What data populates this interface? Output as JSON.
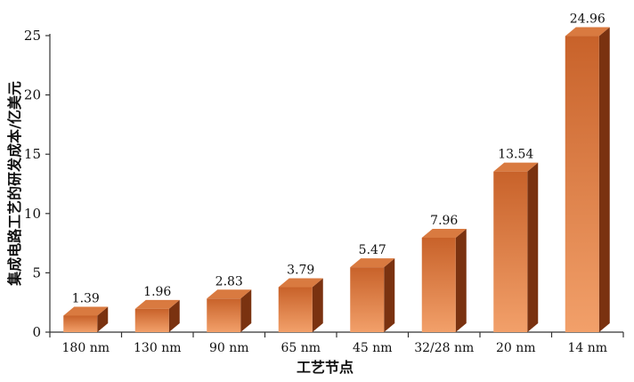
{
  "chart_data": {
    "type": "bar",
    "categories": [
      "180 nm",
      "130 nm",
      "90 nm",
      "65 nm",
      "45 nm",
      "32/28 nm",
      "20 nm",
      "14 nm"
    ],
    "values": [
      1.39,
      1.96,
      2.83,
      3.79,
      5.47,
      7.96,
      13.54,
      24.96
    ],
    "value_labels": [
      "1.39",
      "1.96",
      "2.83",
      "3.79",
      "5.47",
      "7.96",
      "13.54",
      "24.96"
    ],
    "xlabel": "工艺节点",
    "ylabel": "集成电路工艺的研发成本/亿美元",
    "ylim": [
      0,
      25
    ],
    "yticks": [
      0,
      5,
      10,
      15,
      20,
      25
    ],
    "grid": false,
    "legend": "none",
    "style": "3d-bar",
    "colors": {
      "bar_front_light": "#f2a06a",
      "bar_front_dark": "#c8622a",
      "bar_top": "#d97a40",
      "bar_side": "#7a3210",
      "axis": "#333333"
    }
  }
}
